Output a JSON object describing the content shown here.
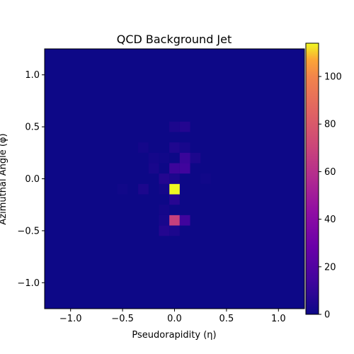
{
  "chart_data": {
    "type": "heatmap",
    "title": "QCD Background Jet",
    "xlabel": "Pseudorapidity (η)",
    "ylabel": "Azimuthal Angle (φ)",
    "xlim": [
      -1.25,
      1.25
    ],
    "ylim": [
      -1.25,
      1.25
    ],
    "bins": 25,
    "bin_width": 0.1,
    "x_ticks": [
      -1.0,
      -0.5,
      0.0,
      0.5,
      1.0
    ],
    "x_tick_labels": [
      "−1.0",
      "−0.5",
      "0.0",
      "0.5",
      "1.0"
    ],
    "y_ticks": [
      -1.0,
      -0.5,
      0.0,
      0.5,
      1.0
    ],
    "y_tick_labels": [
      "−1.0",
      "−0.5",
      "0.0",
      "0.5",
      "1.0"
    ],
    "colormap": "plasma",
    "color_range": [
      0,
      114
    ],
    "colorbar_ticks": [
      0,
      20,
      40,
      60,
      80,
      100
    ],
    "colorbar_tick_labels": [
      "0",
      "20",
      "40",
      "60",
      "80",
      "100"
    ],
    "background_value": 0,
    "cells": [
      {
        "eta": 0.0,
        "phi": 0.5,
        "value": 4
      },
      {
        "eta": 0.1,
        "phi": 0.5,
        "value": 6
      },
      {
        "eta": -0.3,
        "phi": 0.3,
        "value": 2
      },
      {
        "eta": 0.0,
        "phi": 0.3,
        "value": 5
      },
      {
        "eta": 0.1,
        "phi": 0.3,
        "value": 3
      },
      {
        "eta": -0.2,
        "phi": 0.2,
        "value": 2
      },
      {
        "eta": -0.1,
        "phi": 0.2,
        "value": 1
      },
      {
        "eta": 0.1,
        "phi": 0.2,
        "value": 12
      },
      {
        "eta": 0.2,
        "phi": 0.2,
        "value": 4
      },
      {
        "eta": -0.2,
        "phi": 0.1,
        "value": 3
      },
      {
        "eta": 0.0,
        "phi": 0.1,
        "value": 13
      },
      {
        "eta": 0.1,
        "phi": 0.1,
        "value": 14
      },
      {
        "eta": -0.1,
        "phi": 0.0,
        "value": 6
      },
      {
        "eta": 0.0,
        "phi": 0.0,
        "value": 4
      },
      {
        "eta": 0.3,
        "phi": 0.0,
        "value": 1
      },
      {
        "eta": -0.5,
        "phi": -0.1,
        "value": 1
      },
      {
        "eta": -0.3,
        "phi": -0.1,
        "value": 4
      },
      {
        "eta": 0.0,
        "phi": -0.1,
        "value": 114
      },
      {
        "eta": -0.1,
        "phi": -0.1,
        "value": 2
      },
      {
        "eta": 0.0,
        "phi": -0.2,
        "value": 7
      },
      {
        "eta": -0.1,
        "phi": -0.3,
        "value": 2
      },
      {
        "eta": -0.1,
        "phi": -0.4,
        "value": 3
      },
      {
        "eta": 0.0,
        "phi": -0.4,
        "value": 68
      },
      {
        "eta": 0.1,
        "phi": -0.4,
        "value": 14
      },
      {
        "eta": -0.1,
        "phi": -0.5,
        "value": 6
      },
      {
        "eta": 0.0,
        "phi": -0.5,
        "value": 4
      }
    ]
  }
}
